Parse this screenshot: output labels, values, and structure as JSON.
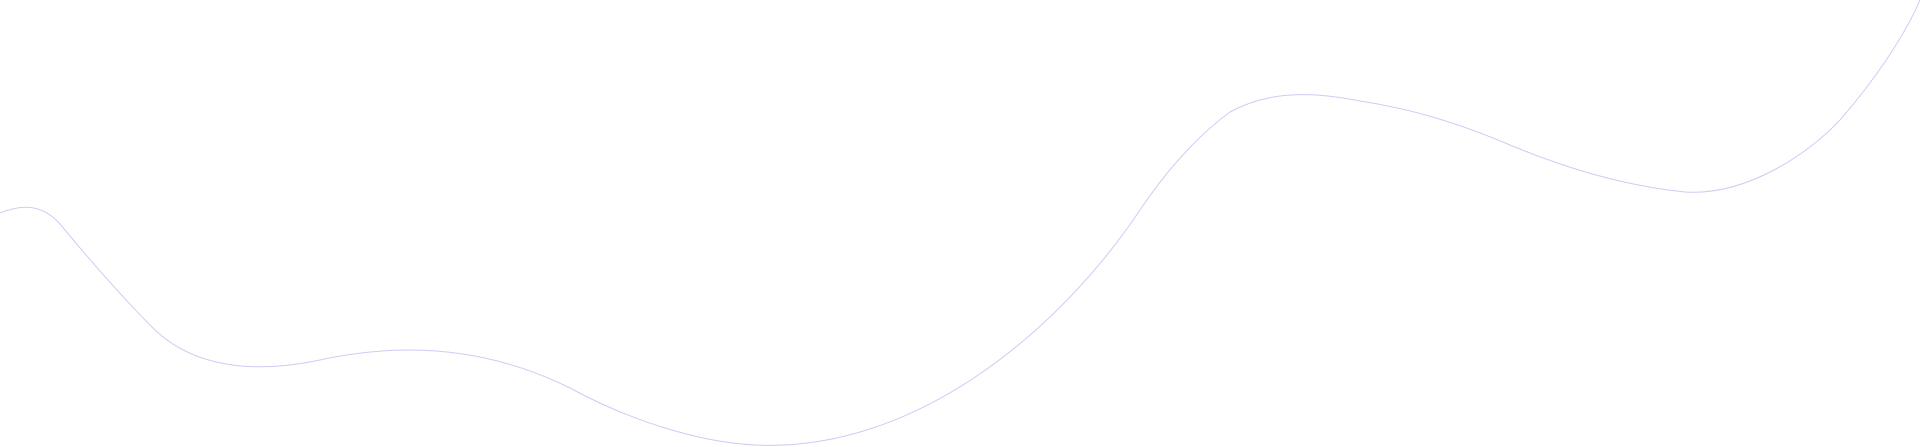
{
  "background": {
    "color": "#ffffff"
  },
  "decoration": {
    "kind": "wave-line",
    "stroke_color": "#c8c2f2"
  }
}
